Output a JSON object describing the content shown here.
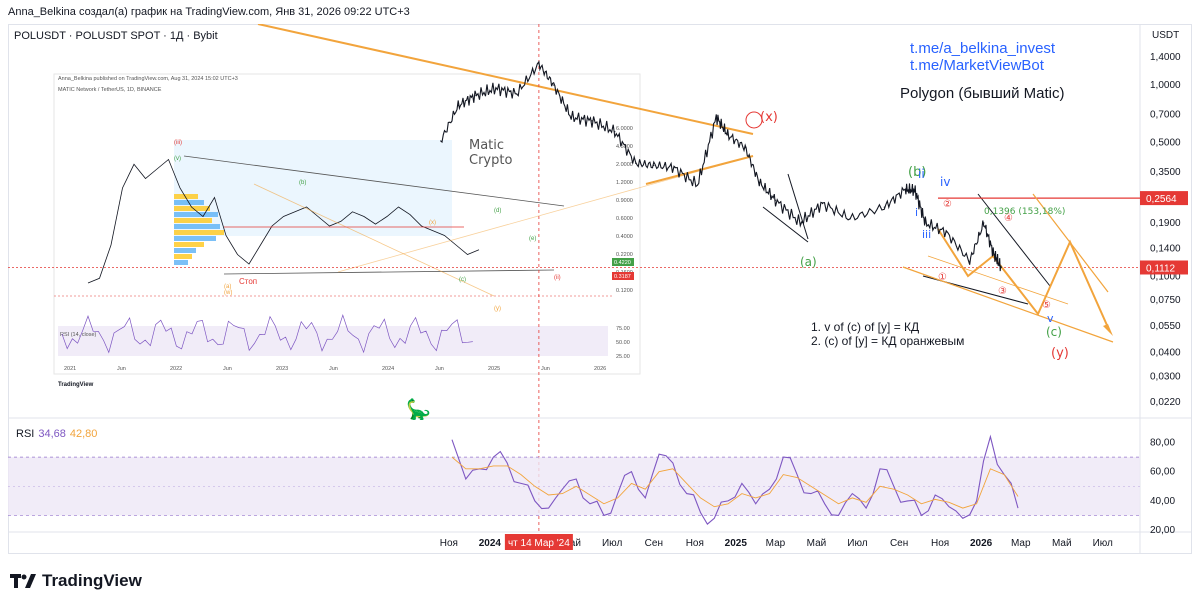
{
  "header": {
    "text": "Anna_Belkina создал(а) график на TradingView.com, Янв 31, 2026 09:22 UTC+3"
  },
  "symbol": {
    "text": "POLUSDT · POLUSDT SPOT · 1Д · Bybit"
  },
  "links": [
    "t.me/a_belkina_invest",
    "t.me/MarketViewBot"
  ],
  "chart_title": "Polygon (бывший Matic)",
  "notes": [
    "1. v of (c) of [y] = КД",
    "2. (c) of [y] = КД оранжевым"
  ],
  "footer_logo": "TradingView",
  "colors": {
    "price": "#131722",
    "orange": "#f2a43c",
    "red": "#e53935",
    "green": "#43a047",
    "blue": "#2962ff",
    "purple": "#7e57c2",
    "rsi_band": "#ede7f6"
  },
  "chart_data": [
    {
      "type": "line",
      "name": "price",
      "currency_label": "USDT",
      "y_scale": "log",
      "ylim": [
        0.02,
        1.6
      ],
      "y_ticks": [
        "1,4000",
        "1,0000",
        "0,7000",
        "0,5000",
        "0,3500",
        "0,2500",
        "0,1900",
        "0,1400",
        "0,1000",
        "0,0750",
        "0,0550",
        "0,0400",
        "0,0300",
        "0,0220"
      ],
      "x_ticks": [
        "Ноя",
        "2024",
        "Мар",
        "Май",
        "Июл",
        "Сен",
        "Ноя",
        "2025",
        "Мар",
        "Май",
        "Июл",
        "Сен",
        "Ноя",
        "2026",
        "Мар",
        "Май",
        "Июл"
      ],
      "crosshair_label": "чт 14 Мар '24",
      "price_labels": [
        {
          "value": "0,2564",
          "color": "#e53935"
        },
        {
          "value": "0,1112",
          "color": "#e53935"
        }
      ],
      "x": [
        "2023-10-20",
        "2023-11-15",
        "2023-12-10",
        "2024-01-10",
        "2024-02-10",
        "2024-03-14",
        "2024-04-05",
        "2024-05-01",
        "2024-06-01",
        "2024-07-05",
        "2024-08-05",
        "2024-09-01",
        "2024-10-01",
        "2024-11-05",
        "2024-12-03",
        "2024-12-20",
        "2025-01-15",
        "2025-02-05",
        "2025-03-01",
        "2025-04-07",
        "2025-05-10",
        "2025-06-20",
        "2025-08-10",
        "2025-09-10",
        "2025-09-25",
        "2025-10-10",
        "2025-11-10",
        "2025-12-15",
        "2026-01-05",
        "2026-01-20",
        "2026-01-31"
      ],
      "y": [
        0.51,
        0.78,
        0.88,
        0.96,
        0.9,
        1.29,
        1.0,
        0.68,
        0.65,
        0.57,
        0.39,
        0.38,
        0.37,
        0.3,
        0.68,
        0.55,
        0.47,
        0.31,
        0.25,
        0.19,
        0.24,
        0.2,
        0.23,
        0.285,
        0.28,
        0.19,
        0.17,
        0.12,
        0.19,
        0.13,
        0.1112
      ],
      "annotations": [
        "(x)",
        "(b)",
        "(a)",
        "(c)",
        "(y)",
        "iv",
        "ii",
        "iii",
        "i",
        "v",
        "①",
        "②",
        "③",
        "④",
        "⑤",
        "0,1396 (153,18%)",
        "Matic Crypto"
      ],
      "inset": {
        "header": "Anna_Belkina published on TradingView.com, Aug 31, 2024 15:02 UTC+3",
        "symbol": "MATIC Network / TetherUS, 1D, BINANCE",
        "y_ticks": [
          "6.0000",
          "4.5000",
          "2.0000",
          "1.2000",
          "0.9000",
          "0.6000",
          "0.4000",
          "0.2200",
          "0.1600",
          "0.1200"
        ],
        "x_ticks": [
          "2021",
          "Jun",
          "2022",
          "Jun",
          "2023",
          "Jun",
          "2024",
          "Jun",
          "2025",
          "Jun",
          "2026"
        ],
        "price_labels": [
          "0.4220",
          "0.3187"
        ],
        "annotations": [
          "Стоп",
          "(a)",
          "(w)",
          "(b)",
          "(c)",
          "(x)",
          "(y)",
          "(d)",
          "(e)",
          "(ii)",
          "(iii)",
          "(v)"
        ],
        "rsi_label": "RSI (14, close)",
        "rsi_ticks": [
          "75.00",
          "50.00",
          "25.00"
        ],
        "logo": "TradingView"
      }
    },
    {
      "type": "line",
      "name": "RSI",
      "label": "RSI",
      "values_shown": [
        "34,68",
        "42,80"
      ],
      "ylim": [
        20,
        90
      ],
      "y_ticks": [
        "80,00",
        "60,00",
        "40,00",
        "20,00"
      ],
      "bands": [
        30,
        70
      ],
      "series": [
        {
          "name": "RSI",
          "values": [
            82,
            55,
            62,
            70,
            66,
            52,
            40,
            35,
            48,
            55,
            38,
            30,
            45,
            60,
            42,
            72,
            66,
            45,
            32,
            28,
            40,
            52,
            38,
            48,
            70,
            58,
            45,
            38,
            30,
            45,
            35,
            62,
            50,
            40,
            30,
            44,
            36,
            28,
            40,
            84,
            58,
            35
          ]
        },
        {
          "name": "MA",
          "values": [
            70,
            62,
            62,
            64,
            64,
            58,
            50,
            44,
            45,
            50,
            44,
            38,
            42,
            52,
            48,
            60,
            62,
            52,
            42,
            36,
            38,
            45,
            42,
            45,
            58,
            56,
            50,
            44,
            38,
            42,
            39,
            50,
            48,
            44,
            38,
            41,
            39,
            35,
            38,
            62,
            58,
            43
          ]
        }
      ]
    }
  ]
}
